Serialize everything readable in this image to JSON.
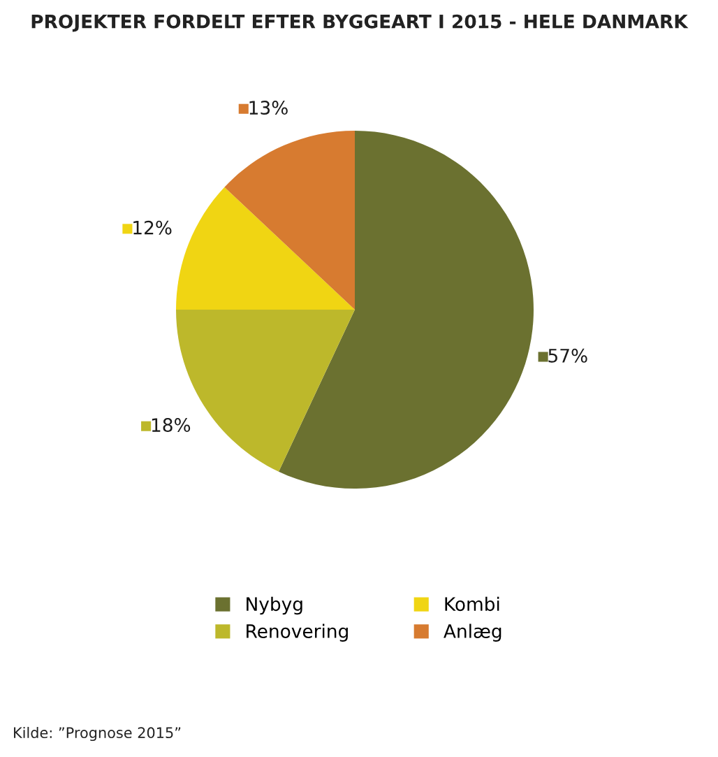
{
  "chart_data": {
    "type": "pie",
    "title": "PROJEKTER FORDELT EFTER BYGGEART I 2015 - HELE DANMARK",
    "categories": [
      "Nybyg",
      "Renovering",
      "Kombi",
      "Anlæg"
    ],
    "values": [
      57,
      18,
      12,
      13
    ],
    "colors": [
      "#6b7130",
      "#bdb82b",
      "#f0d513",
      "#d77b30"
    ],
    "value_labels": [
      "57%",
      "18%",
      "12%",
      "13%"
    ],
    "legend": "bottom",
    "annotations": [
      "Kilde: ”Prognose 2015”"
    ]
  }
}
